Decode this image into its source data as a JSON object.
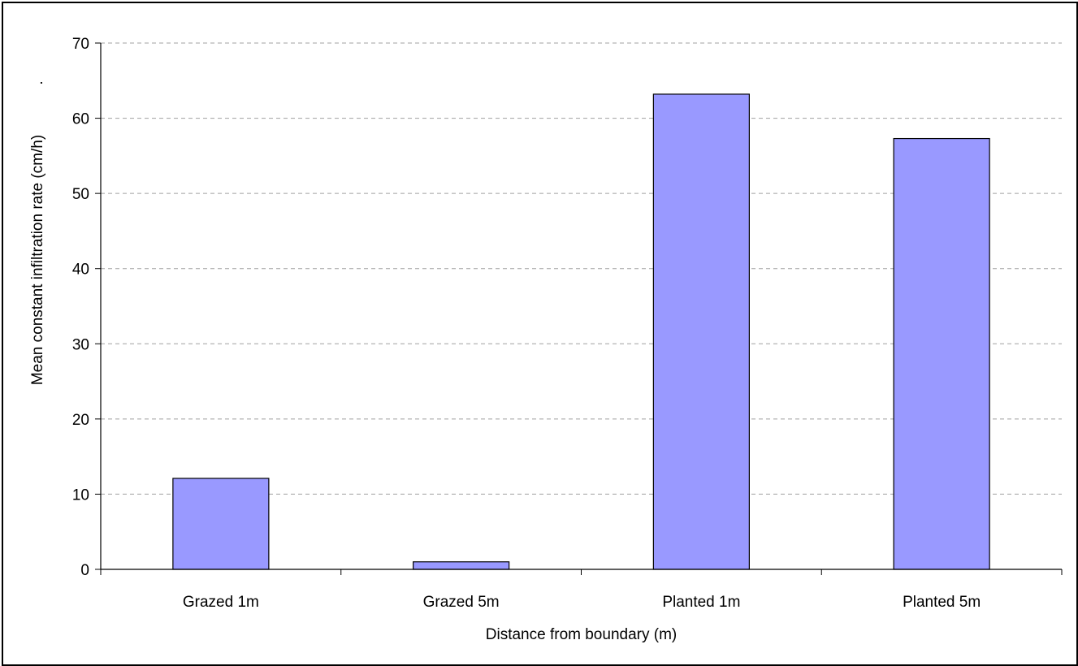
{
  "chart_data": {
    "type": "bar",
    "title": "",
    "xlabel": "Distance from boundary (m)",
    "ylabel": "Mean constant infiltration rate (cm/h)",
    "ylabel_suffix": ".",
    "categories": [
      "Grazed 1m",
      "Grazed 5m",
      "Planted 1m",
      "Planted 5m"
    ],
    "series": [
      {
        "values": [
          12.1,
          1.0,
          63.2,
          57.3
        ]
      }
    ],
    "ylim": [
      0,
      70
    ],
    "yticks": [
      "0",
      "10",
      "20",
      "30",
      "40",
      "50",
      "60",
      "70"
    ],
    "grid": "horizontal dashed",
    "legend": "none",
    "colors": {
      "bar_fill": "#9999ff",
      "bar_stroke": "#000000",
      "grid": "#a0a0a0",
      "axis": "#000000"
    }
  }
}
